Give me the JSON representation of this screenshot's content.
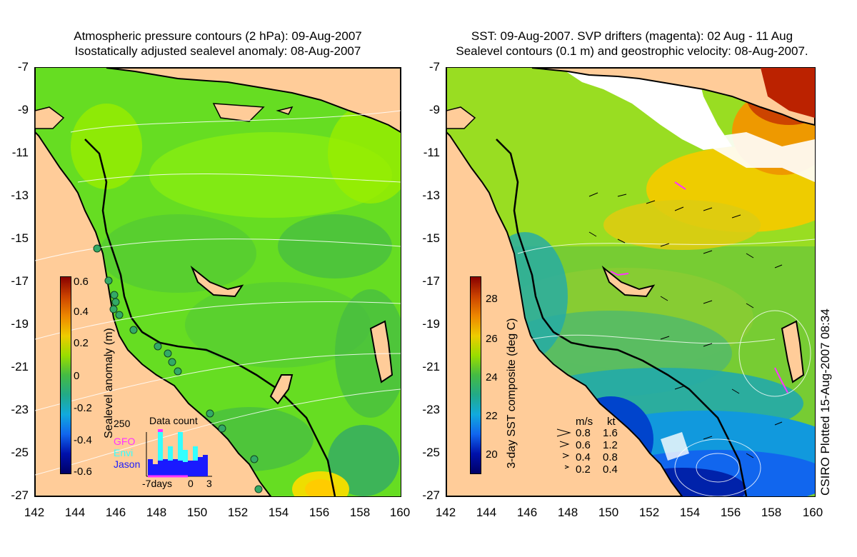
{
  "left_panel": {
    "title_line1": "Atmospheric pressure contours (2 hPa): 09-Aug-2007",
    "title_line2": "Isostatically adjusted sealevel anomaly: 08-Aug-2007",
    "colorbar_label": "Sealevel anomaly (m)",
    "colorbar_ticks": [
      "0.6",
      "0.4",
      "0.2",
      "0",
      "-0.2",
      "-0.4",
      "-0.6"
    ],
    "inset": {
      "title": "Data count",
      "ymax": "250",
      "legend": [
        "GFO",
        "Envi",
        "Jason"
      ],
      "legend_colors": [
        "#ff33ff",
        "#33ffff",
        "#1a1aff"
      ],
      "x_labels": [
        "-7days",
        "0",
        "3"
      ]
    }
  },
  "right_panel": {
    "title_line1": "SST: 09-Aug-2007. SVP drifters (magenta): 02 Aug - 11 Aug",
    "title_line2": "Sealevel contours (0.1 m) and geostrophic velocity: 08-Aug-2007.",
    "colorbar_label": "3-day SST composite (deg C)",
    "colorbar_ticks": [
      "28",
      "26",
      "24",
      "22",
      "20"
    ],
    "speed_legend": {
      "headers": [
        "m/s",
        "kt"
      ],
      "rows": [
        [
          "0.8",
          "1.6"
        ],
        [
          "0.6",
          "1.2"
        ],
        [
          "0.4",
          "0.8"
        ],
        [
          "0.2",
          "0.4"
        ]
      ]
    }
  },
  "axes": {
    "y_ticks": [
      "-7",
      "-9",
      "-11",
      "-13",
      "-15",
      "-17",
      "-19",
      "-21",
      "-23",
      "-25",
      "-27"
    ],
    "x_ticks": [
      "142",
      "144",
      "146",
      "148",
      "150",
      "152",
      "154",
      "156",
      "158",
      "160"
    ]
  },
  "credit": "CSIRO Plotted 15-Aug-2007 08:34"
}
